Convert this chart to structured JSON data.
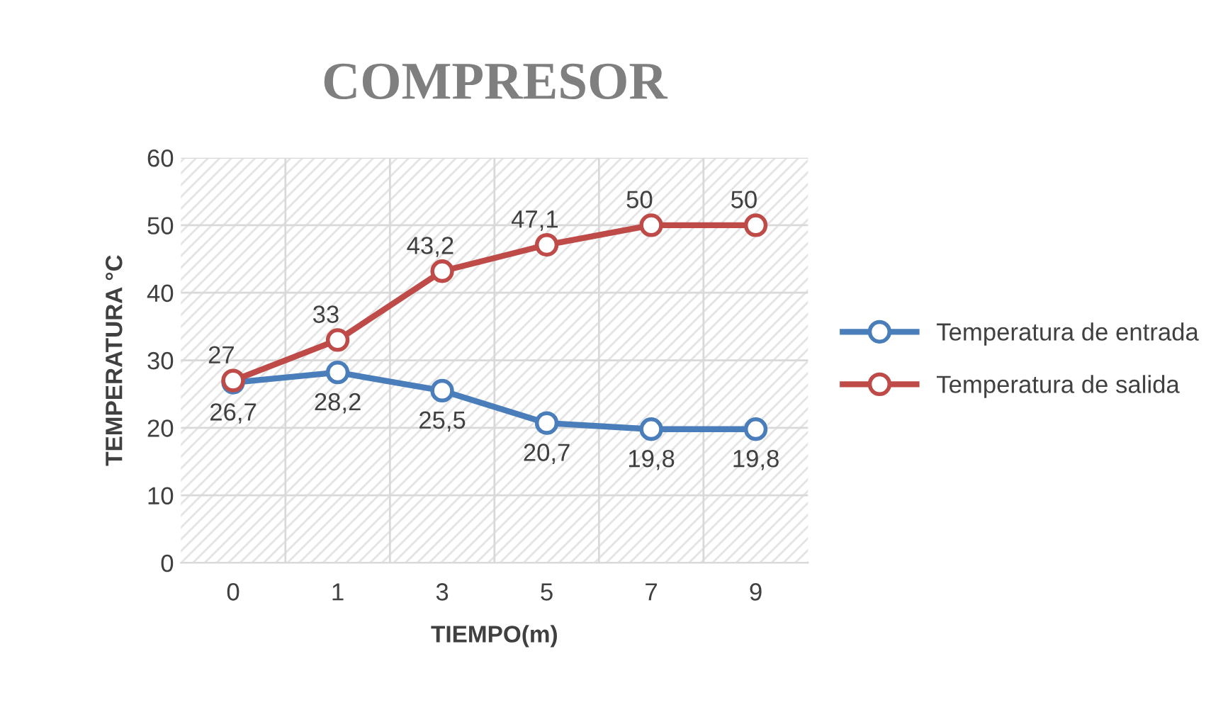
{
  "chart_data": {
    "type": "line",
    "title": "COMPRESOR",
    "xlabel": "TIEMPO(m)",
    "ylabel": "TEMPERATURA °C",
    "categories": [
      "0",
      "1",
      "3",
      "5",
      "7",
      "9"
    ],
    "series": [
      {
        "name": "Temperatura de entrada",
        "color": "#4a7ebb",
        "values": [
          26.7,
          28.2,
          25.5,
          20.7,
          19.8,
          19.8
        ],
        "value_labels": [
          "26,7",
          "28,2",
          "25,5",
          "20,7",
          "19,8",
          "19,8"
        ]
      },
      {
        "name": "Temperatura de salida",
        "color": "#be4b48",
        "values": [
          27,
          33,
          43.2,
          47.1,
          50,
          50
        ],
        "value_labels": [
          "27",
          "33",
          "43,2",
          "47,1",
          "50",
          "50"
        ]
      }
    ],
    "ylim": [
      0,
      60
    ],
    "yticks": [
      0,
      10,
      20,
      30,
      40,
      50,
      60
    ],
    "grid": true,
    "legend": "right",
    "marker": "circle",
    "line_style": "solid"
  }
}
